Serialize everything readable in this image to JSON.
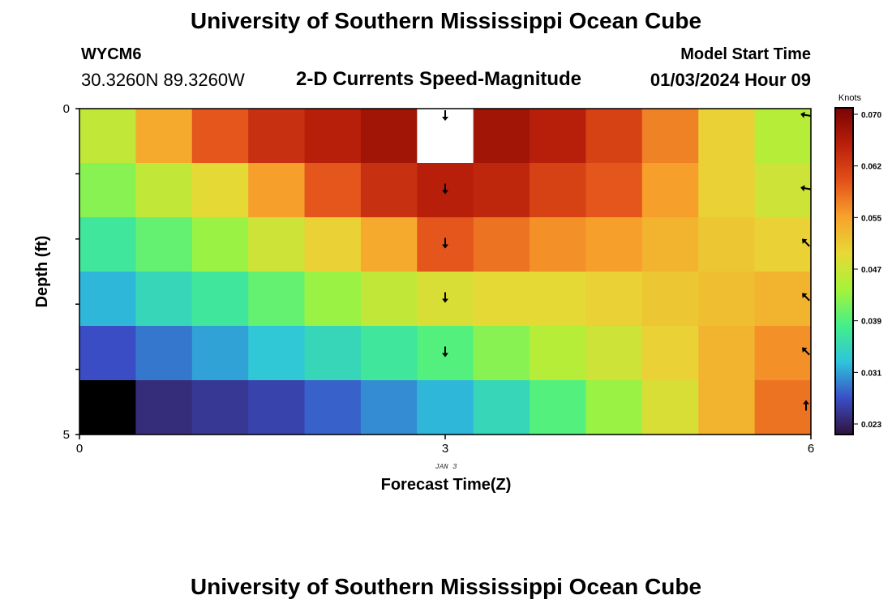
{
  "header": {
    "title": "University of Southern Mississippi Ocean Cube",
    "station_id": "WYCM6",
    "coordinates": "30.3260N  89.3260W",
    "plot_title": "2-D Currents Speed-Magnitude",
    "model_label": "Model Start Time",
    "model_time": "01/03/2024 Hour 09"
  },
  "footer": {
    "title": "University of Southern Mississippi Ocean Cube"
  },
  "chart_data": {
    "type": "heatmap",
    "title": "2-D Currents Speed-Magnitude",
    "xlabel": "Forecast Time(Z)",
    "ylabel": "Depth (ft)",
    "x_ticks": [
      "0",
      "3",
      "6"
    ],
    "x_sublabel": "JAN 3",
    "y_ticks": [
      "0",
      "5"
    ],
    "xlim": [
      0,
      6
    ],
    "ylim": [
      0,
      5
    ],
    "colorbar": {
      "unit": "Knots",
      "ticks": [
        "0.070",
        "0.062",
        "0.055",
        "0.047",
        "0.039",
        "0.031",
        "0.023"
      ],
      "range": [
        0.0215,
        0.0715
      ],
      "stops": [
        "#30123b",
        "#3a4ec6",
        "#2ec4dc",
        "#44ef8a",
        "#a6f33a",
        "#e8d836",
        "#f7a22c",
        "#e3501a",
        "#b81f0a",
        "#7a0403"
      ]
    },
    "columns": 13,
    "rows": 6,
    "values": [
      [
        0.046,
        0.054,
        0.06,
        0.064,
        0.066,
        0.068,
        null,
        0.068,
        0.066,
        0.062,
        0.057,
        0.05,
        0.045
      ],
      [
        0.042,
        0.046,
        0.049,
        0.055,
        0.06,
        0.064,
        0.066,
        0.065,
        0.062,
        0.06,
        0.055,
        0.05,
        0.047
      ],
      [
        0.037,
        0.04,
        0.043,
        0.047,
        0.05,
        0.054,
        0.06,
        0.058,
        0.056,
        0.055,
        0.053,
        0.051,
        0.05
      ],
      [
        0.032,
        0.035,
        0.037,
        0.04,
        0.043,
        0.046,
        0.048,
        0.049,
        0.049,
        0.05,
        0.051,
        0.052,
        0.053
      ],
      [
        0.027,
        0.029,
        0.031,
        0.033,
        0.035,
        0.037,
        0.039,
        0.042,
        0.045,
        0.047,
        0.05,
        0.053,
        0.056
      ],
      [
        0.01,
        0.024,
        0.025,
        0.026,
        0.028,
        0.03,
        0.032,
        0.035,
        0.039,
        0.043,
        0.048,
        0.053,
        0.058
      ]
    ],
    "arrows": [
      {
        "x": 3,
        "row": 0,
        "dir": "down"
      },
      {
        "x": 3,
        "row": 1,
        "dir": "down"
      },
      {
        "x": 3,
        "row": 2,
        "dir": "down"
      },
      {
        "x": 3,
        "row": 3,
        "dir": "down"
      },
      {
        "x": 3,
        "row": 4,
        "dir": "down"
      },
      {
        "x": 6,
        "row": 0,
        "dir": "left"
      },
      {
        "x": 6,
        "row": 1,
        "dir": "left"
      },
      {
        "x": 6,
        "row": 2,
        "dir": "up-left"
      },
      {
        "x": 6,
        "row": 3,
        "dir": "up-left"
      },
      {
        "x": 6,
        "row": 4,
        "dir": "up-left"
      },
      {
        "x": 6,
        "row": 5,
        "dir": "up"
      }
    ]
  }
}
